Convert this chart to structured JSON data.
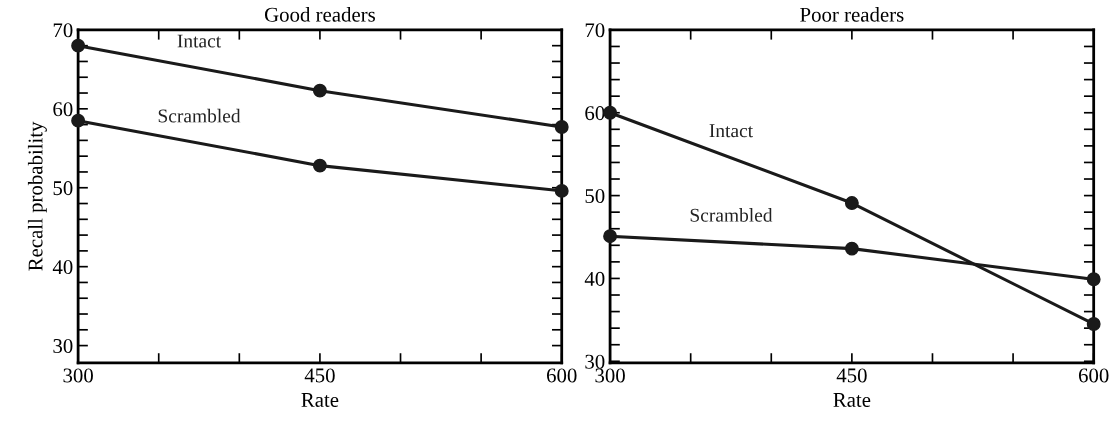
{
  "chart_data": [
    {
      "type": "line",
      "title": "Good readers",
      "xlabel": "Rate",
      "ylabel": "Recall probability",
      "x": [
        300,
        450,
        600
      ],
      "marker": "circle",
      "line_style": "solid",
      "grid": false,
      "legend": false,
      "series": [
        {
          "name": "Intact",
          "color": "#1a1a1a",
          "values": [
            68,
            62.3,
            57.7
          ]
        },
        {
          "name": "Scrambled",
          "color": "#1a1a1a",
          "values": [
            58.5,
            52.8,
            49.6
          ]
        }
      ],
      "xlim": [
        300,
        600
      ],
      "xticks": [
        300,
        {
          "value": 350,
          "label": null
        },
        {
          "value": 400,
          "label": null
        },
        450,
        {
          "value": 500,
          "label": null
        },
        {
          "value": 550,
          "label": null
        },
        600
      ],
      "ylim": [
        27.8,
        70
      ],
      "yticks": [
        30,
        {
          "value": 32,
          "label": null
        },
        {
          "value": 34,
          "label": null
        },
        {
          "value": 36,
          "label": null
        },
        {
          "value": 38,
          "label": null
        },
        40,
        {
          "value": 42,
          "label": null
        },
        {
          "value": 44,
          "label": null
        },
        {
          "value": 46,
          "label": null
        },
        {
          "value": 48,
          "label": null
        },
        50,
        {
          "value": 52,
          "label": null
        },
        {
          "value": 54,
          "label": null
        },
        {
          "value": 56,
          "label": null
        },
        {
          "value": 58,
          "label": null
        },
        60,
        {
          "value": 62,
          "label": null
        },
        {
          "value": 64,
          "label": null
        },
        {
          "value": 66,
          "label": null
        },
        {
          "value": 68,
          "label": null
        },
        70
      ]
    },
    {
      "type": "line",
      "title": "Poor readers",
      "xlabel": "Rate",
      "x": [
        300,
        450,
        600
      ],
      "marker": "circle",
      "line_style": "solid",
      "grid": false,
      "legend": false,
      "series": [
        {
          "name": "Intact",
          "color": "#1a1a1a",
          "values": [
            60,
            49.1,
            34.5
          ]
        },
        {
          "name": "Scrambled",
          "color": "#1a1a1a",
          "values": [
            45.1,
            43.6,
            39.9
          ]
        }
      ],
      "xlim": [
        300,
        600
      ],
      "xticks": [
        300,
        {
          "value": 350,
          "label": null
        },
        {
          "value": 400,
          "label": null
        },
        450,
        {
          "value": 500,
          "label": null
        },
        {
          "value": 550,
          "label": null
        },
        600
      ],
      "ylim": [
        29.8,
        70
      ],
      "yticks": [
        30,
        {
          "value": 32,
          "label": null
        },
        {
          "value": 34,
          "label": null
        },
        {
          "value": 36,
          "label": null
        },
        {
          "value": 38,
          "label": null
        },
        40,
        {
          "value": 42,
          "label": null
        },
        {
          "value": 44,
          "label": null
        },
        {
          "value": 46,
          "label": null
        },
        {
          "value": 48,
          "label": null
        },
        50,
        {
          "value": 52,
          "label": null
        },
        {
          "value": 54,
          "label": null
        },
        {
          "value": 56,
          "label": null
        },
        {
          "value": 58,
          "label": null
        },
        60,
        {
          "value": 62,
          "label": null
        },
        {
          "value": 64,
          "label": null
        },
        {
          "value": 66,
          "label": null
        },
        {
          "value": 68,
          "label": null
        },
        70
      ]
    }
  ]
}
